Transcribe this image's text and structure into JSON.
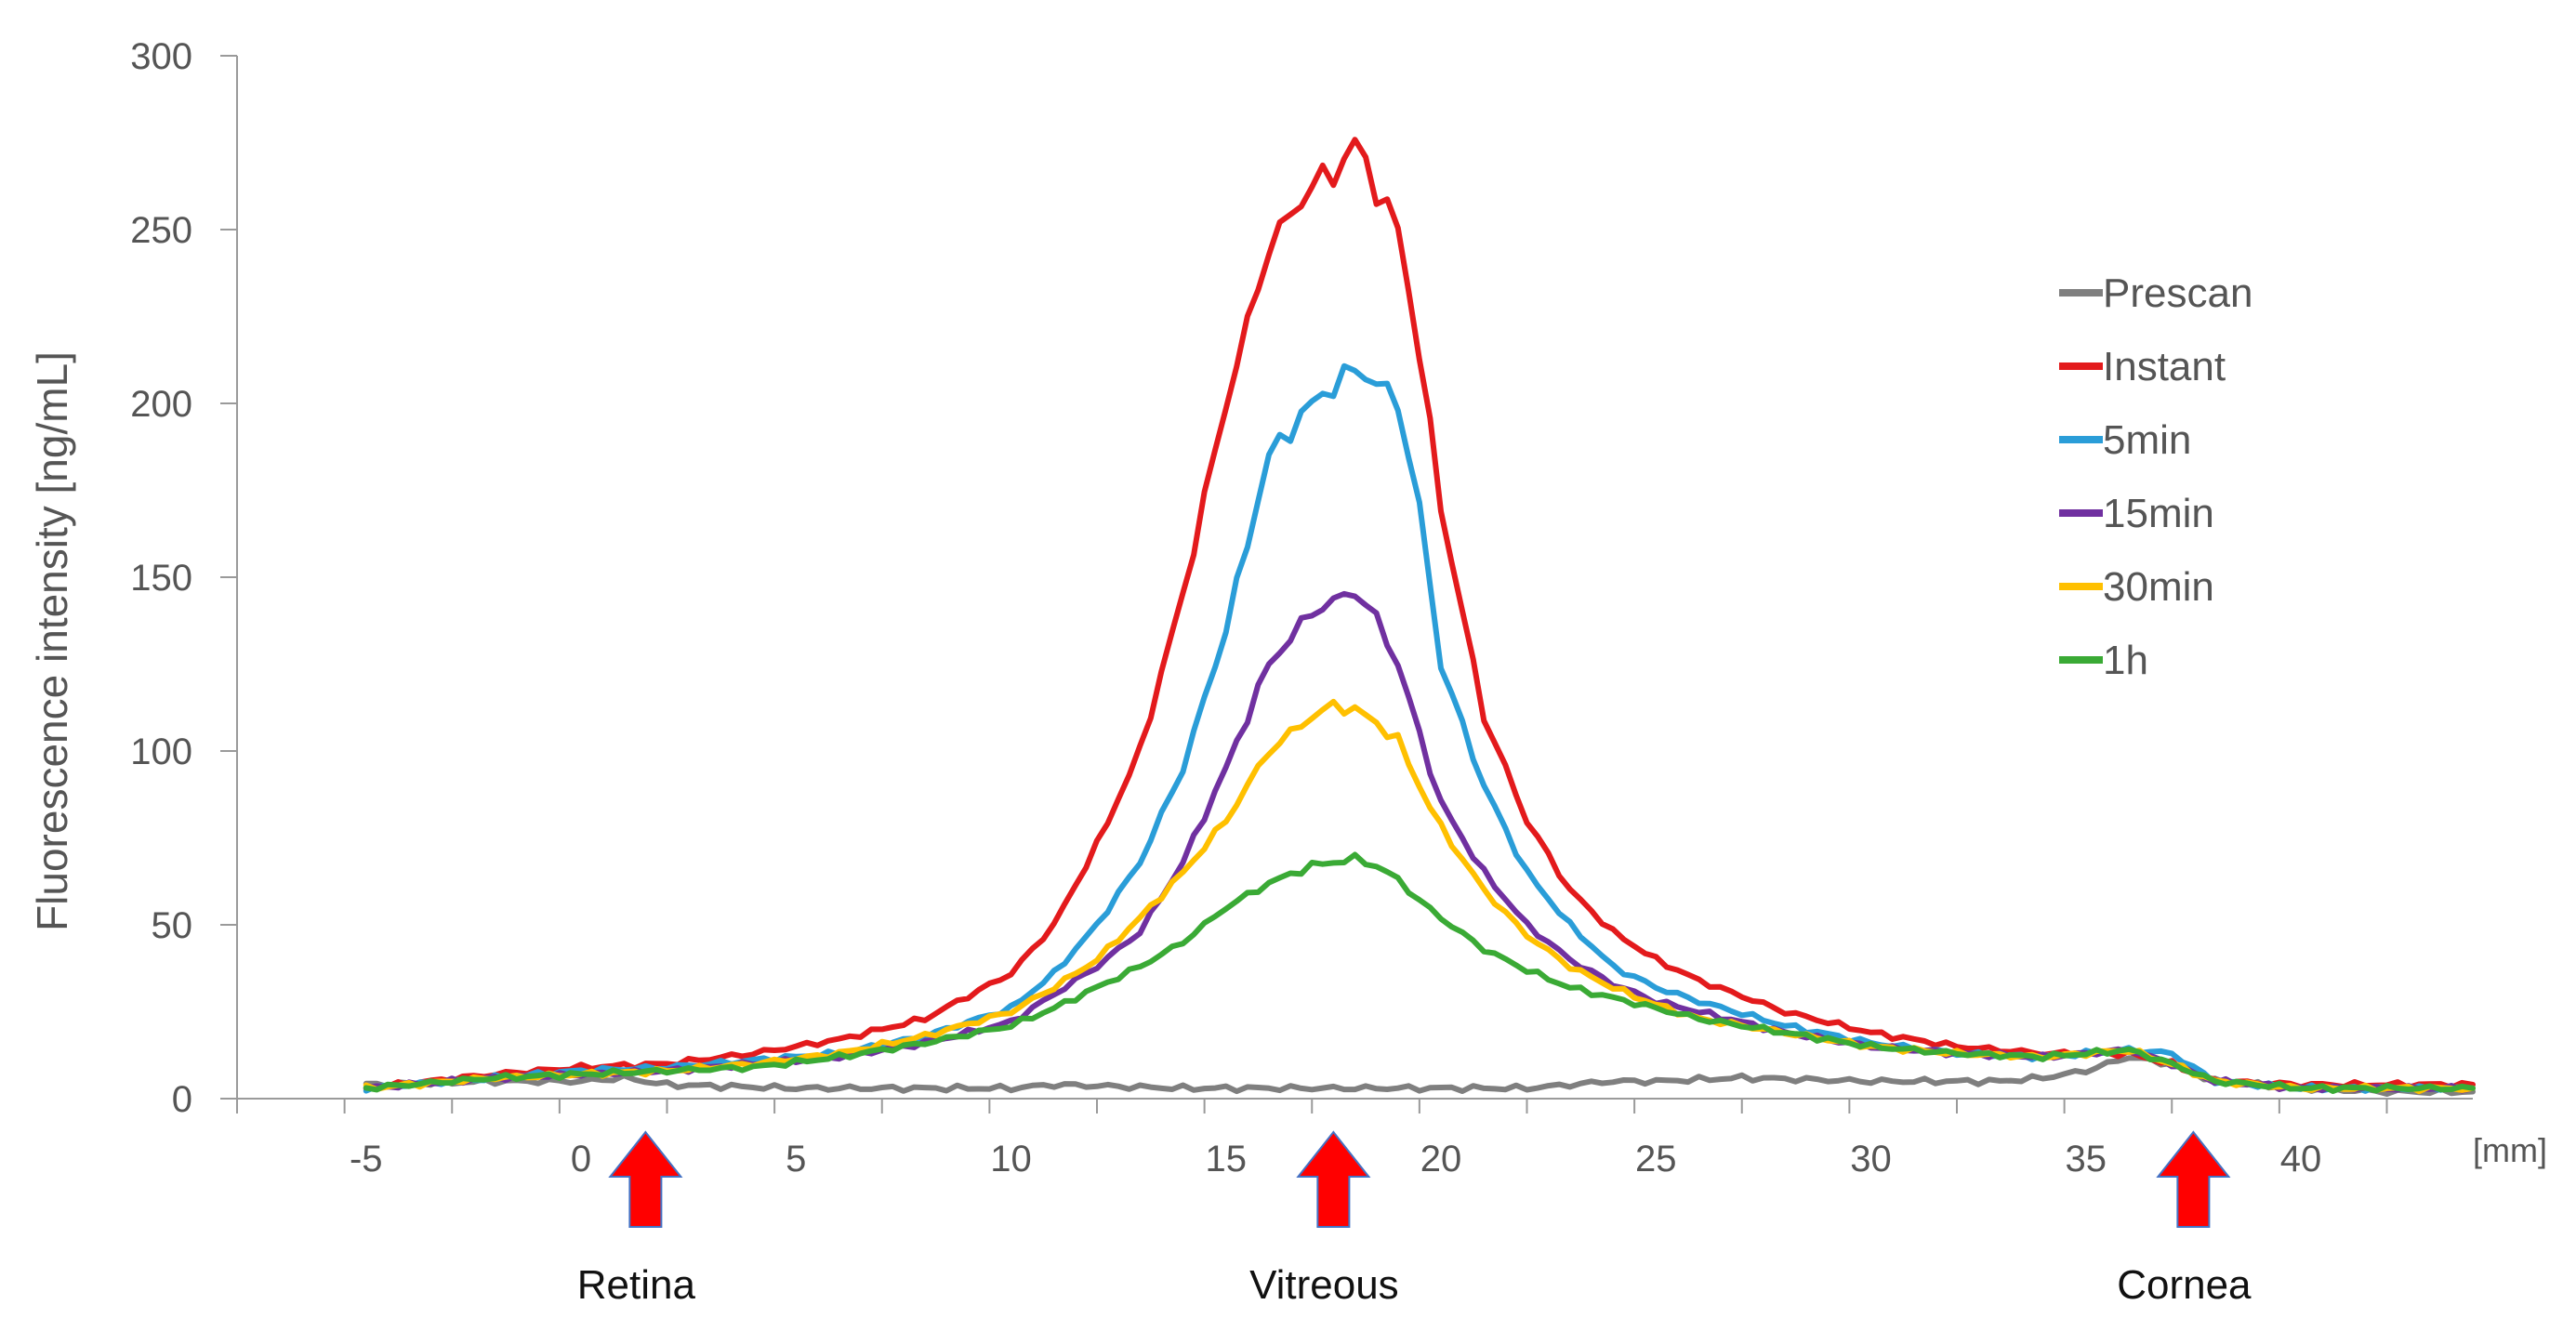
{
  "chart_data": {
    "type": "line",
    "title": "",
    "xlabel": "",
    "x_unit": "[mm]",
    "ylabel": "Fluorescence intensity [ng/mL]",
    "xlim": [
      -8,
      44
    ],
    "ylim": [
      0,
      300
    ],
    "x_ticks": [
      -5,
      0,
      5,
      10,
      15,
      20,
      25,
      30,
      35,
      40
    ],
    "y_ticks": [
      0,
      50,
      100,
      150,
      200,
      250,
      300
    ],
    "legend_position": "right",
    "series": [
      {
        "name": "Prescan",
        "color": "#7f7f7f",
        "x": [
          -5,
          -2,
          0,
          1,
          2,
          5,
          8,
          10,
          11,
          14,
          17,
          20,
          22,
          24,
          25,
          27,
          30,
          33,
          34,
          35,
          36,
          37,
          38,
          40,
          42,
          44
        ],
        "y": [
          4,
          5,
          5,
          6,
          4,
          3,
          3,
          3,
          4,
          3,
          3,
          3,
          3,
          5,
          5,
          6,
          5,
          5,
          6,
          8,
          12,
          10,
          5,
          3,
          2,
          2
        ]
      },
      {
        "name": "Instant",
        "color": "#e31a1c",
        "x": [
          -5,
          -2,
          0,
          2,
          4,
          6,
          8,
          10,
          11,
          12,
          13,
          14,
          15,
          16,
          17,
          17.5,
          18,
          18.5,
          19,
          19.5,
          20,
          21,
          22,
          23,
          24,
          25,
          26,
          28,
          30,
          32,
          34,
          36,
          37,
          38,
          40,
          42,
          44
        ],
        "y": [
          3,
          7,
          9,
          10,
          13,
          17,
          23,
          36,
          50,
          73,
          100,
          145,
          200,
          245,
          263,
          266,
          275,
          262,
          250,
          215,
          170,
          110,
          80,
          60,
          48,
          40,
          34,
          25,
          19,
          15,
          13,
          13,
          10,
          5,
          4,
          4,
          4
        ]
      },
      {
        "name": "5min",
        "color": "#2a9dd8",
        "x": [
          -5,
          -2,
          0,
          2,
          4,
          6,
          8,
          10,
          11,
          12,
          13,
          14,
          15,
          16,
          17,
          17.5,
          18,
          18.5,
          19,
          19.5,
          20,
          21,
          22,
          23,
          24,
          25,
          26,
          28,
          30,
          32,
          34,
          36,
          37,
          38,
          40,
          42,
          44
        ],
        "y": [
          3,
          6,
          8,
          9,
          11,
          13,
          18,
          26,
          36,
          50,
          68,
          95,
          135,
          185,
          200,
          205,
          210,
          206,
          200,
          170,
          125,
          90,
          65,
          50,
          38,
          32,
          28,
          21,
          16,
          13,
          12,
          14,
          13,
          5,
          3,
          3,
          3
        ]
      },
      {
        "name": "15min",
        "color": "#7030a0",
        "x": [
          -5,
          -2,
          0,
          2,
          4,
          6,
          8,
          10,
          11,
          12,
          13,
          14,
          15,
          16,
          17,
          17.5,
          18,
          18.5,
          19,
          19.5,
          20,
          21,
          22,
          23,
          24,
          25,
          26,
          28,
          30,
          32,
          34,
          36,
          37,
          38,
          40,
          42,
          44
        ],
        "y": [
          3,
          6,
          7,
          8,
          10,
          12,
          16,
          22,
          30,
          38,
          48,
          68,
          95,
          125,
          140,
          143,
          146,
          138,
          125,
          105,
          85,
          65,
          50,
          40,
          33,
          28,
          25,
          19,
          15,
          13,
          12,
          14,
          10,
          5,
          3,
          3,
          3
        ]
      },
      {
        "name": "30min",
        "color": "#ffc000",
        "x": [
          -5,
          -2,
          0,
          2,
          4,
          6,
          8,
          10,
          11,
          12,
          13,
          14,
          15,
          16,
          17,
          17.5,
          18,
          18.5,
          19,
          19.5,
          20,
          21,
          22,
          23,
          24,
          25,
          26,
          28,
          30,
          32,
          34,
          36,
          37,
          38,
          40,
          42,
          44
        ],
        "y": [
          3,
          6,
          7,
          8,
          10,
          13,
          18,
          25,
          32,
          40,
          52,
          65,
          80,
          100,
          110,
          113,
          112,
          108,
          103,
          90,
          78,
          60,
          47,
          38,
          32,
          27,
          23,
          19,
          15,
          13,
          12,
          14,
          10,
          5,
          3,
          3,
          3
        ]
      },
      {
        "name": "1h",
        "color": "#3aaa35",
        "x": [
          -5,
          -2,
          0,
          2,
          4,
          6,
          8,
          10,
          11,
          12,
          13,
          14,
          15,
          16,
          17,
          17.5,
          18,
          18.5,
          19,
          19.5,
          20,
          21,
          22,
          23,
          24,
          25,
          26,
          28,
          30,
          32,
          34,
          36,
          37,
          38,
          40,
          42,
          44
        ],
        "y": [
          3,
          6,
          7,
          8,
          9,
          12,
          16,
          21,
          26,
          32,
          38,
          45,
          55,
          62,
          67,
          68,
          69,
          67,
          63,
          57,
          52,
          43,
          37,
          32,
          29,
          26,
          23,
          19,
          15,
          13,
          12,
          14,
          10,
          5,
          3,
          3,
          3
        ]
      }
    ],
    "annotations": [
      {
        "label": "Retina",
        "x": 1.5
      },
      {
        "label": "Vitreous",
        "x": 17.5
      },
      {
        "label": "Cornea",
        "x": 37.5
      }
    ]
  }
}
